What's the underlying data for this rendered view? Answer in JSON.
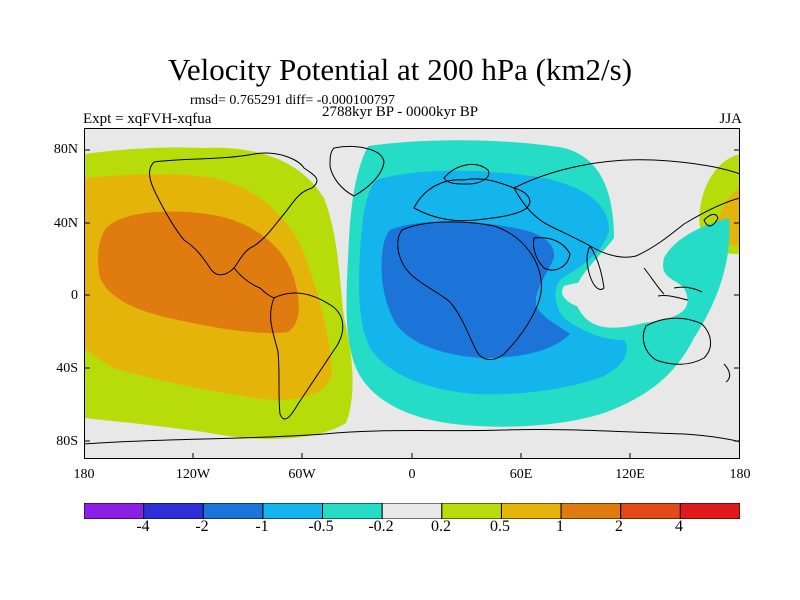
{
  "title": "Velocity Potential at 200 hPa (km2/s)",
  "stats": "rmsd= 0.765291 diff= -0.000100797",
  "left_label": "Expt = xqFVH-xqfua",
  "center_label": "2788kyr BP - 0000kyr BP",
  "right_label": "JJA",
  "lat_ticks": [
    "80N",
    "40N",
    "0",
    "40S",
    "80S"
  ],
  "lon_ticks": [
    "180",
    "120W",
    "60W",
    "0",
    "60E",
    "120E",
    "180"
  ],
  "colorbar": {
    "labels": [
      "-4",
      "-2",
      "-1",
      "-0.5",
      "-0.2",
      "0.2",
      "0.5",
      "1",
      "2",
      "4"
    ],
    "colors": [
      "#8a1fe6",
      "#2f2fd9",
      "#1c74d8",
      "#14b4ec",
      "#25dcc7",
      "#e8e8e8",
      "#b8dc0a",
      "#e5b40a",
      "#e07b10",
      "#e34a18",
      "#e01a1a"
    ]
  },
  "colors": {
    "neutral": "#e8e8e8",
    "neg_weak": "#25dcc7",
    "neg_mid": "#14b4ec",
    "neg_strong": "#1c74d8",
    "pos_weak": "#b8dc0a",
    "pos_mid": "#e5b40a",
    "pos_strong": "#e07b10"
  }
}
